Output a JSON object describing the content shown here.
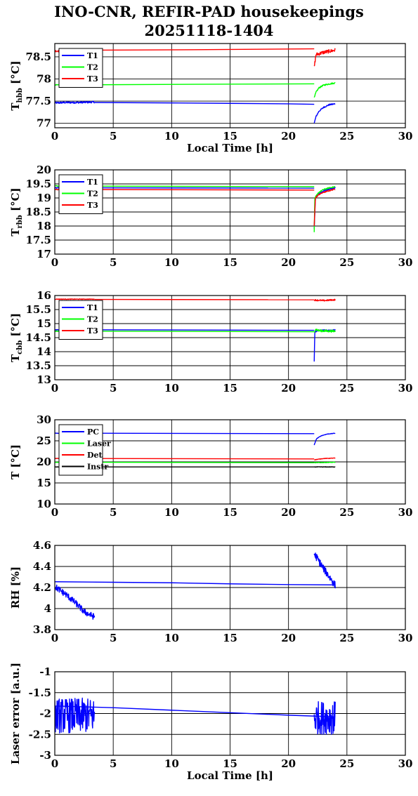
{
  "title_line1": "INO-CNR, REFIR-PAD housekeepings",
  "title_line2": "20251118-1404",
  "colors": {
    "T1": "#0000ff",
    "T2": "#00ff00",
    "T3": "#ff0000",
    "PC": "#0000ff",
    "Laser": "#00ff00",
    "Det": "#ff0000",
    "Instr": "#000000"
  },
  "chart_data": [
    {
      "type": "line",
      "ylabel_main": "T",
      "ylabel_sub": "hbb",
      "ylabel_unit": " [°C]",
      "xlabel": "Local Time [h]",
      "xlim": [
        0,
        30
      ],
      "ylim": [
        76.9,
        78.8
      ],
      "xticks": [
        "0",
        "5",
        "10",
        "15",
        "20",
        "25",
        "30"
      ],
      "yticks": [
        {
          "v": 77,
          "label": "77"
        },
        {
          "v": 77.5,
          "label": "77.5"
        },
        {
          "v": 78,
          "label": "78"
        },
        {
          "v": 78.5,
          "label": "78.5"
        }
      ],
      "grid": true,
      "legend_position": "top-left",
      "series": [
        {
          "name": "T1",
          "color": "#0000ff",
          "segments": [
            {
              "x": [
                0,
                1,
                2,
                3.4
              ],
              "y": [
                77.46,
                77.47,
                77.47,
                77.48
              ],
              "noise": 0.02
            },
            {
              "x": [
                3.4,
                10,
                15,
                20,
                22.2
              ],
              "y": [
                77.47,
                77.46,
                77.45,
                77.44,
                77.43
              ]
            },
            {
              "x": [
                22.2,
                22.35,
                22.6,
                23,
                23.5,
                24
              ],
              "y": [
                77.0,
                77.15,
                77.27,
                77.36,
                77.42,
                77.44
              ],
              "noise": 0.015
            }
          ]
        },
        {
          "name": "T2",
          "color": "#00ff00",
          "segments": [
            {
              "x": [
                0,
                3.4
              ],
              "y": [
                77.87,
                77.87
              ],
              "noise": 0.015
            },
            {
              "x": [
                3.4,
                12,
                22.2
              ],
              "y": [
                77.87,
                77.88,
                77.89
              ]
            },
            {
              "x": [
                22.2,
                22.35,
                22.6,
                23,
                23.5,
                24
              ],
              "y": [
                77.57,
                77.7,
                77.8,
                77.86,
                77.89,
                77.91
              ],
              "noise": 0.015
            }
          ]
        },
        {
          "name": "T3",
          "color": "#ff0000",
          "segments": [
            {
              "x": [
                0,
                3.4
              ],
              "y": [
                78.63,
                78.65
              ],
              "noise": 0.02
            },
            {
              "x": [
                3.4,
                12,
                22.2
              ],
              "y": [
                78.65,
                78.66,
                78.68
              ]
            },
            {
              "x": [
                22.2,
                22.35,
                23,
                24
              ],
              "y": [
                78.26,
                78.55,
                78.6,
                78.65
              ],
              "noise": 0.04
            }
          ]
        }
      ]
    },
    {
      "type": "line",
      "ylabel_main": "T",
      "ylabel_sub": "rbb",
      "ylabel_unit": " [°C]",
      "xlabel": "",
      "xlim": [
        0,
        30
      ],
      "ylim": [
        17,
        20
      ],
      "xticks": [
        "0",
        "5",
        "10",
        "15",
        "20",
        "25",
        "30"
      ],
      "yticks": [
        {
          "v": 17,
          "label": "17"
        },
        {
          "v": 17.5,
          "label": "17.5"
        },
        {
          "v": 18,
          "label": "18"
        },
        {
          "v": 18.5,
          "label": "18.5"
        },
        {
          "v": 19,
          "label": "19"
        },
        {
          "v": 19.5,
          "label": "19.5"
        },
        {
          "v": 20,
          "label": "20"
        }
      ],
      "grid": true,
      "legend_position": "top-left",
      "series": [
        {
          "name": "T1",
          "color": "#0000ff",
          "segments": [
            {
              "x": [
                0,
                3.4
              ],
              "y": [
                19.36,
                19.36
              ],
              "noise": 0.015
            },
            {
              "x": [
                3.4,
                22.2
              ],
              "y": [
                19.36,
                19.35
              ]
            },
            {
              "x": [
                22.2,
                22.3,
                22.6,
                23,
                23.5,
                24
              ],
              "y": [
                17.9,
                19.0,
                19.15,
                19.25,
                19.32,
                19.36
              ],
              "noise": 0.02
            }
          ]
        },
        {
          "name": "T2",
          "color": "#00ff00",
          "segments": [
            {
              "x": [
                0,
                3.4
              ],
              "y": [
                19.43,
                19.43
              ],
              "noise": 0.015
            },
            {
              "x": [
                3.4,
                22.2
              ],
              "y": [
                19.42,
                19.4
              ]
            },
            {
              "x": [
                22.2,
                22.25,
                22.6,
                23,
                23.5,
                24
              ],
              "y": [
                17.8,
                19.0,
                19.2,
                19.3,
                19.36,
                19.4
              ],
              "noise": 0.02
            }
          ]
        },
        {
          "name": "T3",
          "color": "#ff0000",
          "segments": [
            {
              "x": [
                0,
                3.4
              ],
              "y": [
                19.3,
                19.3
              ],
              "noise": 0.015
            },
            {
              "x": [
                3.4,
                22.2
              ],
              "y": [
                19.3,
                19.28
              ]
            },
            {
              "x": [
                22.2,
                22.3,
                22.6,
                23,
                23.5,
                24
              ],
              "y": [
                18.0,
                19.0,
                19.12,
                19.2,
                19.26,
                19.32
              ],
              "noise": 0.02
            }
          ]
        }
      ]
    },
    {
      "type": "line",
      "ylabel_main": "T",
      "ylabel_sub": "cbb",
      "ylabel_unit": " [°C]",
      "xlabel": "",
      "xlim": [
        0,
        30
      ],
      "ylim": [
        13,
        16
      ],
      "xticks": [
        "0",
        "5",
        "10",
        "15",
        "20",
        "25",
        "30"
      ],
      "yticks": [
        {
          "v": 13,
          "label": "13"
        },
        {
          "v": 13.5,
          "label": "13.5"
        },
        {
          "v": 14,
          "label": "14"
        },
        {
          "v": 14.5,
          "label": "14.5"
        },
        {
          "v": 15,
          "label": "15"
        },
        {
          "v": 15.5,
          "label": "15.5"
        },
        {
          "v": 16,
          "label": "16"
        }
      ],
      "grid": true,
      "legend_position": "top-left",
      "series": [
        {
          "name": "T1",
          "color": "#0000ff",
          "segments": [
            {
              "x": [
                0,
                3.4
              ],
              "y": [
                14.78,
                14.78
              ],
              "noise": 0.01
            },
            {
              "x": [
                3.4,
                22.2
              ],
              "y": [
                14.78,
                14.76
              ]
            },
            {
              "x": [
                22.2,
                22.25,
                22.5,
                23,
                24
              ],
              "y": [
                13.65,
                14.7,
                14.75,
                14.76,
                14.77
              ],
              "noise": 0.02
            }
          ]
        },
        {
          "name": "T2",
          "color": "#00ff00",
          "segments": [
            {
              "x": [
                0,
                3.4
              ],
              "y": [
                14.73,
                14.74
              ],
              "noise": 0.01
            },
            {
              "x": [
                3.4,
                22.2
              ],
              "y": [
                14.73,
                14.71
              ]
            },
            {
              "x": [
                22.2,
                22.3,
                22.6,
                23,
                24
              ],
              "y": [
                14.7,
                14.8,
                14.75,
                14.74,
                14.73
              ],
              "noise": 0.04
            }
          ]
        },
        {
          "name": "T3",
          "color": "#ff0000",
          "segments": [
            {
              "x": [
                0,
                3.4
              ],
              "y": [
                15.87,
                15.87
              ],
              "noise": 0.01
            },
            {
              "x": [
                3.4,
                22.2
              ],
              "y": [
                15.86,
                15.85
              ]
            },
            {
              "x": [
                22.2,
                23,
                24
              ],
              "y": [
                15.84,
                15.82,
                15.85
              ],
              "noise": 0.025
            }
          ]
        }
      ]
    },
    {
      "type": "line",
      "ylabel_main": "T [°C]",
      "ylabel_sub": "",
      "ylabel_unit": "",
      "xlabel": "",
      "xlim": [
        0,
        30
      ],
      "ylim": [
        10,
        30
      ],
      "xticks": [
        "0",
        "5",
        "10",
        "15",
        "20",
        "25",
        "30"
      ],
      "yticks": [
        {
          "v": 10,
          "label": "10"
        },
        {
          "v": 15,
          "label": "15"
        },
        {
          "v": 20,
          "label": "20"
        },
        {
          "v": 25,
          "label": "25"
        },
        {
          "v": 30,
          "label": "30"
        }
      ],
      "grid": true,
      "legend_position": "top-left",
      "series": [
        {
          "name": "PC",
          "color": "#0000ff",
          "segments": [
            {
              "x": [
                0,
                3.4
              ],
              "y": [
                26.8,
                26.8
              ],
              "noise": 0.05
            },
            {
              "x": [
                3.4,
                22.2
              ],
              "y": [
                26.8,
                26.7
              ]
            },
            {
              "x": [
                22.2,
                22.4,
                22.8,
                23.3,
                24
              ],
              "y": [
                24.0,
                25.5,
                26.2,
                26.6,
                26.8
              ],
              "noise": 0.05
            }
          ]
        },
        {
          "name": "Laser",
          "color": "#00ff00",
          "segments": [
            {
              "x": [
                0,
                3.4
              ],
              "y": [
                19.9,
                19.9
              ],
              "noise": 0.05
            },
            {
              "x": [
                3.4,
                22.2
              ],
              "y": [
                19.9,
                19.8
              ]
            },
            {
              "x": [
                22.2,
                24
              ],
              "y": [
                19.8,
                19.9
              ],
              "noise": 0.05
            }
          ]
        },
        {
          "name": "Det",
          "color": "#ff0000",
          "segments": [
            {
              "x": [
                0,
                3.4
              ],
              "y": [
                20.8,
                20.8
              ],
              "noise": 0.05
            },
            {
              "x": [
                3.4,
                22.2
              ],
              "y": [
                20.8,
                20.7
              ]
            },
            {
              "x": [
                22.2,
                23,
                24
              ],
              "y": [
                20.5,
                20.8,
                20.9
              ],
              "noise": 0.05
            }
          ]
        },
        {
          "name": "Instr",
          "color": "#000000",
          "segments": [
            {
              "x": [
                0,
                3.4
              ],
              "y": [
                18.8,
                18.8
              ],
              "noise": 0.05
            },
            {
              "x": [
                3.4,
                22.2
              ],
              "y": [
                18.8,
                18.8
              ]
            },
            {
              "x": [
                22.2,
                24
              ],
              "y": [
                18.8,
                18.8
              ],
              "noise": 0.05
            }
          ]
        }
      ]
    },
    {
      "type": "line",
      "ylabel_main": "RH [%]",
      "ylabel_sub": "",
      "ylabel_unit": "",
      "xlabel": "",
      "xlim": [
        0,
        30
      ],
      "ylim": [
        3.8,
        4.6
      ],
      "xticks": [
        "0",
        "5",
        "10",
        "15",
        "20",
        "25",
        "30"
      ],
      "yticks": [
        {
          "v": 3.8,
          "label": "3.8"
        },
        {
          "v": 4,
          "label": "4"
        },
        {
          "v": 4.2,
          "label": "4.2"
        },
        {
          "v": 4.4,
          "label": "4.4"
        },
        {
          "v": 4.6,
          "label": "4.6"
        }
      ],
      "grid": true,
      "legend_position": "none",
      "series": [
        {
          "name": "",
          "color": "#0000ff",
          "segments": [
            {
              "x": [
                0,
                0.5,
                1,
                1.5,
                2,
                2.5,
                3.4
              ],
              "y": [
                4.21,
                4.17,
                4.13,
                4.08,
                4.03,
                3.97,
                3.92
              ],
              "noise": 0.03
            },
            {
              "x": [
                0,
                5,
                10,
                15,
                20,
                24
              ],
              "y": [
                4.255,
                4.25,
                4.245,
                4.235,
                4.228,
                4.225
              ]
            },
            {
              "x": [
                22.2,
                22.5,
                23,
                23.5,
                24
              ],
              "y": [
                4.52,
                4.47,
                4.38,
                4.3,
                4.22
              ],
              "noise": 0.035
            }
          ]
        }
      ]
    },
    {
      "type": "line",
      "ylabel_main": "Laser error [a.u.]",
      "ylabel_sub": "",
      "ylabel_unit": "",
      "xlabel": "Local Time [h]",
      "xlim": [
        0,
        30
      ],
      "ylim": [
        -3,
        -1
      ],
      "xticks": [
        "0",
        "5",
        "10",
        "15",
        "20",
        "25",
        "30"
      ],
      "yticks": [
        {
          "v": -3,
          "label": "-3"
        },
        {
          "v": -2.5,
          "label": "-2.5"
        },
        {
          "v": -2,
          "label": "-2"
        },
        {
          "v": -1.5,
          "label": "-1.5"
        },
        {
          "v": -1,
          "label": "-1"
        }
      ],
      "grid": true,
      "legend_position": "none",
      "series": [
        {
          "name": "",
          "color": "#0000ff",
          "segments": [
            {
              "x": [
                0,
                3.4
              ],
              "y": [
                -2.05,
                -2.05
              ],
              "noise": 0.42
            },
            {
              "x": [
                0,
                5,
                10,
                15,
                20,
                24
              ],
              "y": [
                -1.82,
                -1.86,
                -1.92,
                -1.98,
                -2.04,
                -2.08
              ]
            },
            {
              "x": [
                22.2,
                24
              ],
              "y": [
                -2.1,
                -2.1
              ],
              "noise": 0.4
            }
          ]
        }
      ]
    }
  ]
}
